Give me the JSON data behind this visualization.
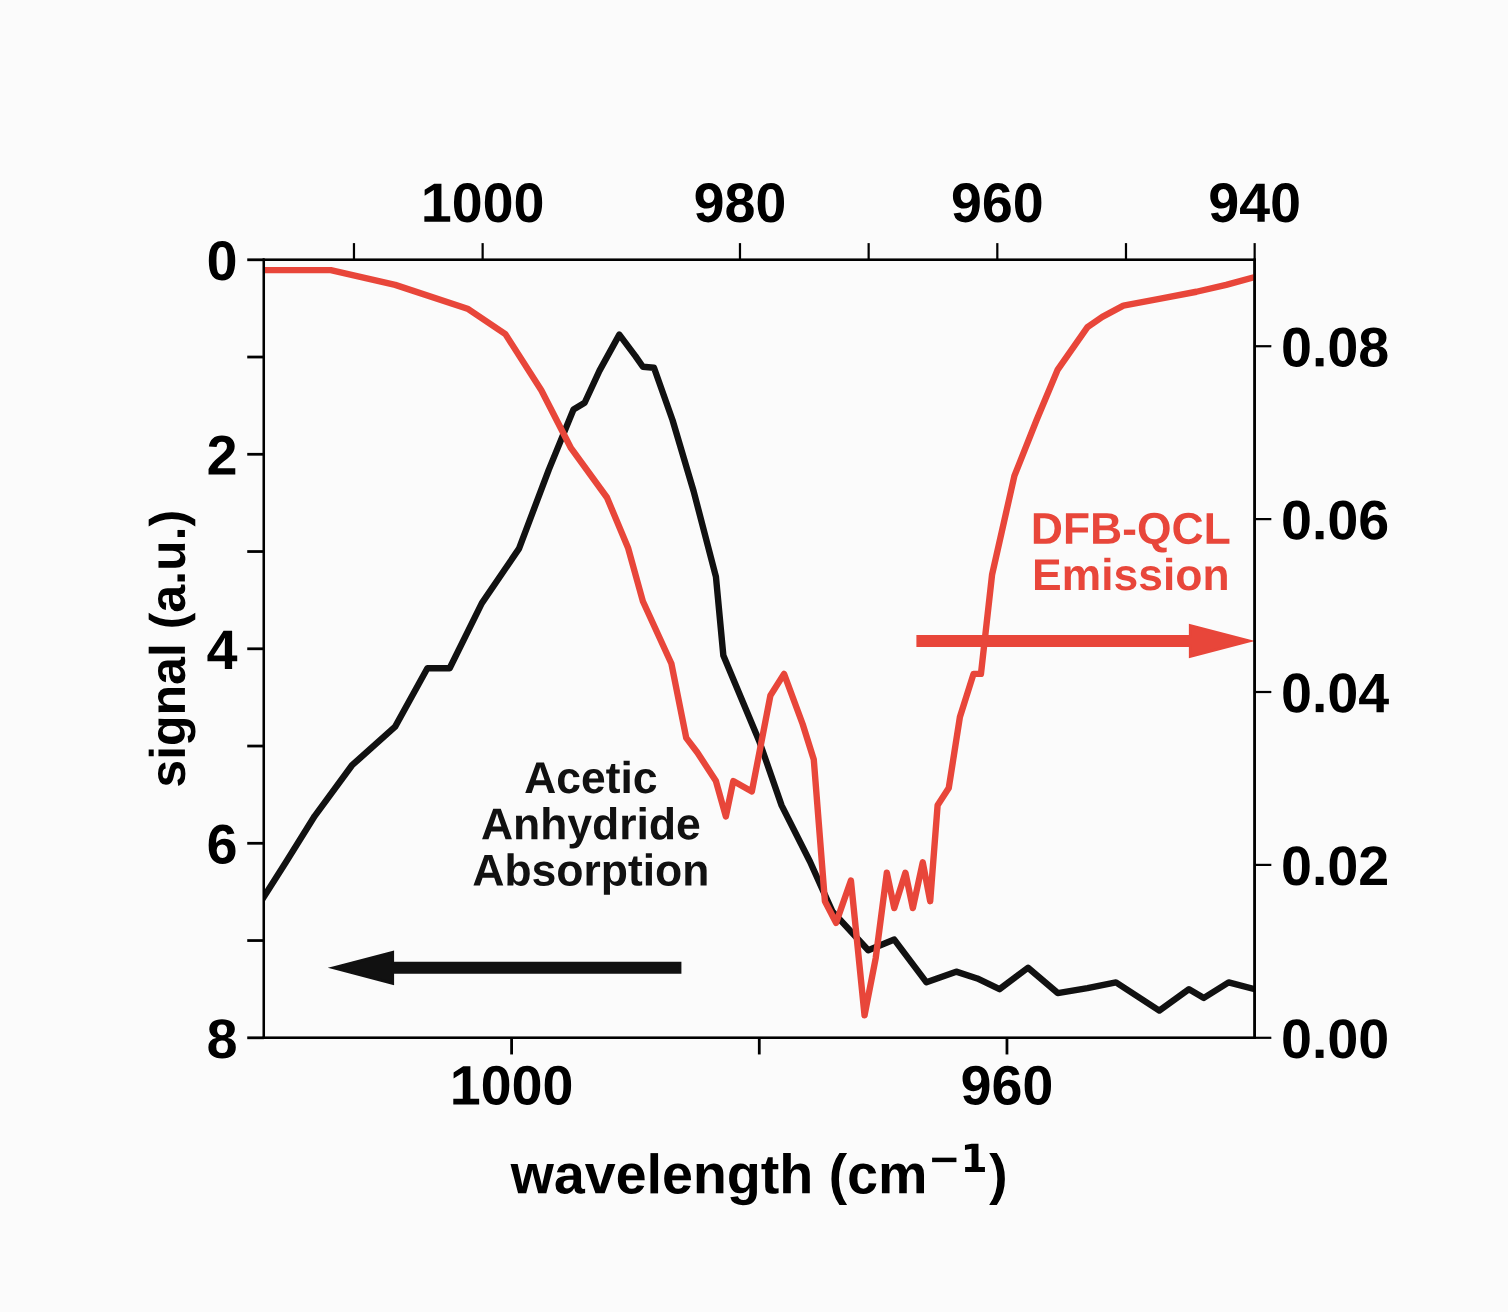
{
  "chart_data": {
    "type": "line",
    "xlabel": "wavelength (cm$^{−1}$)",
    "ylabel": "signal (a.u.)",
    "xlim": [
      1020,
      940
    ],
    "xticks": [
      1000,
      {
        "value": 980,
        "label": null
      },
      960
    ],
    "x2lim": [
      1017,
      940
    ],
    "x2ticks": [
      {
        "value": 1010,
        "label": null
      },
      1000,
      980,
      {
        "value": 970,
        "label": null
      },
      960,
      {
        "value": 950,
        "label": null
      },
      940
    ],
    "ylim": [
      8,
      0
    ],
    "yticks": [
      0,
      {
        "value": 1,
        "label": null
      },
      2,
      {
        "value": 3,
        "label": null
      },
      4,
      {
        "value": 5,
        "label": null
      },
      6,
      {
        "value": 7,
        "label": null
      },
      8
    ],
    "y2lim": [
      0,
      0.09
    ],
    "y2ticks": [
      {
        "value": 0,
        "label": "0.00"
      },
      {
        "value": 0.02,
        "label": "0.02"
      },
      {
        "value": 0.04,
        "label": "0.04"
      },
      {
        "value": 0.06,
        "label": "0.06"
      },
      {
        "value": 0.08,
        "label": "0.08"
      }
    ],
    "annotations": [
      "Acetic\nAnhydride\nAbsorption",
      "DFB-QCL\nEmission"
    ],
    "series": [
      {
        "color": "#111111",
        "x": [
          1020,
          1018.2,
          1015.9,
          1012.9,
          1009.4,
          1006.8,
          1005,
          1002.4,
          999.4,
          997,
          995,
          994.1,
          992.9,
          991.3,
          990,
          989.4,
          988.5,
          987,
          985.3,
          983.5,
          982.9,
          980,
          978.2,
          975.9,
          974.1,
          971.2,
          969.1,
          966.5,
          964.1,
          962.4,
          960.6,
          958.3,
          955.9,
          953.5,
          951.2,
          947.7,
          945.3,
          944.1,
          942.1,
          940
        ],
        "values": [
          6.55,
          6.19,
          5.72,
          5.2,
          4.8,
          4.2,
          4.2,
          3.53,
          2.97,
          2.16,
          1.54,
          1.47,
          1.14,
          0.77,
          0.99,
          1.1,
          1.11,
          1.65,
          2.38,
          3.26,
          4.07,
          4.95,
          5.61,
          6.19,
          6.7,
          7.1,
          6.99,
          7.43,
          7.32,
          7.39,
          7.5,
          7.28,
          7.54,
          7.49,
          7.43,
          7.72,
          7.5,
          7.59,
          7.43,
          7.5
        ]
      },
      {
        "color": "#e8463a",
        "axis": "y2",
        "x": [
          1019.9,
          1014.6,
          1009.4,
          1003.5,
          1000.5,
          997.6,
          995.2,
          992.3,
          990.6,
          989.4,
          987.1,
          985.9,
          985,
          983.5,
          982.7,
          982.1,
          980.6,
          979.1,
          978,
          976.5,
          975.6,
          974.7,
          973.8,
          972.6,
          971.5,
          970.6,
          969.7,
          969.1,
          968.2,
          967.6,
          966.8,
          966.2,
          965.6,
          964.7,
          963.8,
          962.7,
          962.1,
          961.2,
          959.4,
          957.6,
          955.9,
          953.5,
          952.3,
          950.6,
          947.6,
          944.7,
          942.3,
          940
        ],
        "values": [
          0.0888,
          0.0888,
          0.0871,
          0.0843,
          0.0814,
          0.0749,
          0.0682,
          0.0625,
          0.0567,
          0.0505,
          0.0433,
          0.0347,
          0.033,
          0.0297,
          0.0256,
          0.0297,
          0.0285,
          0.0396,
          0.0421,
          0.0363,
          0.0322,
          0.0158,
          0.0133,
          0.0182,
          0.0026,
          0.0092,
          0.0191,
          0.015,
          0.0191,
          0.015,
          0.0203,
          0.0158,
          0.0269,
          0.0289,
          0.0371,
          0.0421,
          0.0421,
          0.0536,
          0.065,
          0.0715,
          0.0773,
          0.0822,
          0.0834,
          0.0847,
          0.0855,
          0.0863,
          0.0871,
          0.088
        ]
      }
    ]
  }
}
